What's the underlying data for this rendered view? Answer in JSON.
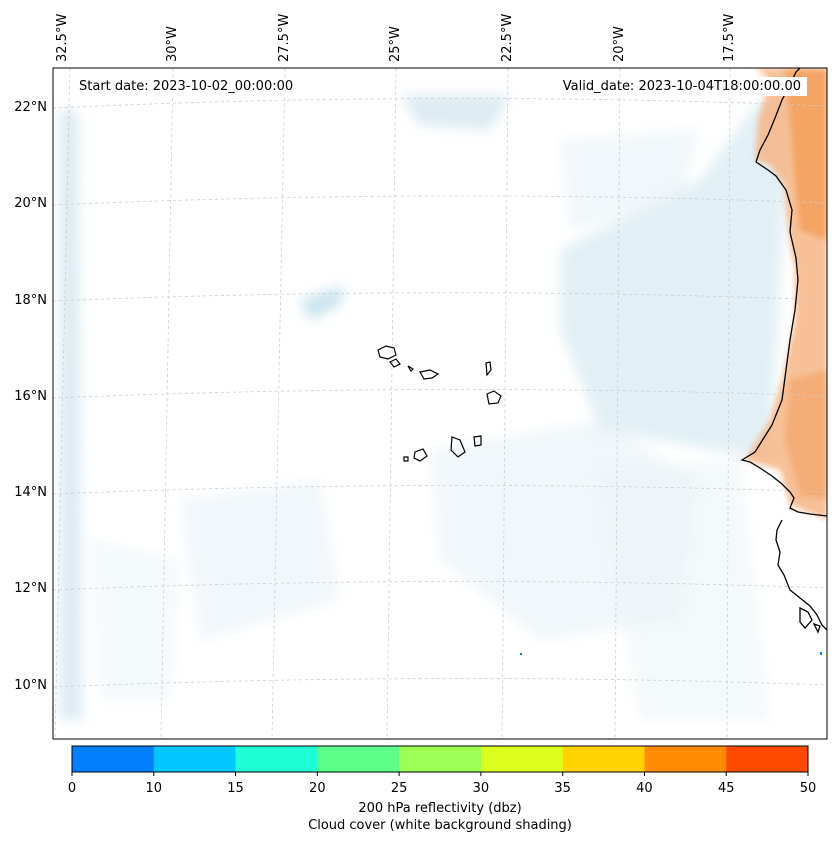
{
  "header": {
    "start_date_label": "Start date: 2023-10-02_00:00:00",
    "valid_date_label": "Valid_date: 2023-10-04T18:00:00.00"
  },
  "map": {
    "lon_labels": [
      "32.5°W",
      "30°W",
      "27.5°W",
      "25°W",
      "22.5°W",
      "20°W",
      "17.5°W"
    ],
    "lat_labels": [
      "22°N",
      "20°N",
      "18°N",
      "16°N",
      "14°N",
      "12°N",
      "10°N"
    ],
    "features": [
      "Cape Verde islands",
      "West African coastline"
    ],
    "colors": {
      "cloud": "#add8e6",
      "reflectivity_land": "#f5a05a",
      "coast": "#000000",
      "grid": "#c8c8c8"
    }
  },
  "colorbar": {
    "ticks": [
      "0",
      "10",
      "15",
      "20",
      "25",
      "30",
      "35",
      "40",
      "45",
      "50"
    ],
    "colors": [
      "#0080ff",
      "#00c8ff",
      "#1effd6",
      "#5cff8a",
      "#9cff52",
      "#dcff1e",
      "#ffd200",
      "#ff8c00",
      "#ff4b00"
    ],
    "label": "200 hPa reflectivity (dbz)",
    "sublabel": "Cloud cover (white background shading)"
  }
}
